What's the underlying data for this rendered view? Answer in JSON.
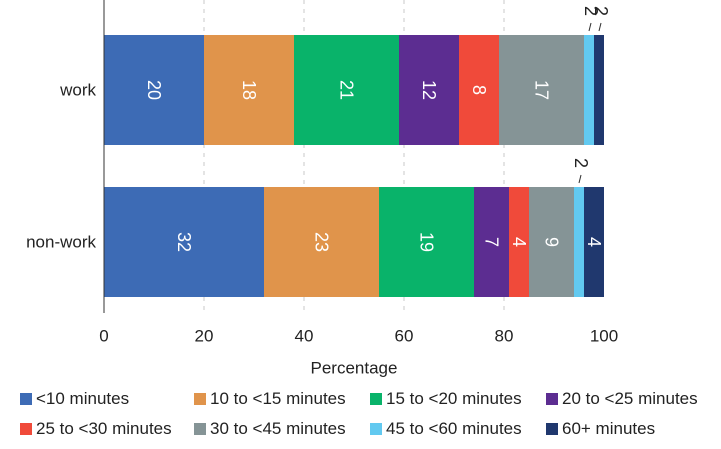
{
  "chart_data": {
    "type": "bar",
    "orientation": "horizontal",
    "stacked": true,
    "categories": [
      "work",
      "non-work"
    ],
    "series": [
      {
        "name": "<10 minutes",
        "color": "#3d6bb5",
        "values": [
          20,
          32
        ]
      },
      {
        "name": "10 to <15 minutes",
        "color": "#e0944b",
        "values": [
          18,
          23
        ]
      },
      {
        "name": "15 to <20 minutes",
        "color": "#09b36a",
        "values": [
          21,
          19
        ]
      },
      {
        "name": "20 to <25 minutes",
        "color": "#5c2d91",
        "values": [
          12,
          7
        ]
      },
      {
        "name": "25 to <30 minutes",
        "color": "#f04a3a",
        "values": [
          8,
          4
        ]
      },
      {
        "name": "30 to <45 minutes",
        "color": "#859496",
        "values": [
          17,
          9
        ]
      },
      {
        "name": "45 to <60 minutes",
        "color": "#62c9f0",
        "values": [
          2,
          2
        ]
      },
      {
        "name": "60+ minutes",
        "color": "#20386e",
        "values": [
          2,
          4
        ]
      }
    ],
    "bar_labels": [
      [
        "20",
        "18",
        "21",
        "12",
        "8",
        "17",
        "2",
        "2"
      ],
      [
        "32",
        "23",
        "19",
        "7",
        "4",
        "9",
        "2",
        "4"
      ]
    ],
    "xlabel": "Percentage",
    "xlim": [
      0,
      100
    ],
    "xticks": [
      "0",
      "20",
      "40",
      "60",
      "80",
      "100"
    ],
    "grid": true,
    "legend_position": "bottom"
  }
}
